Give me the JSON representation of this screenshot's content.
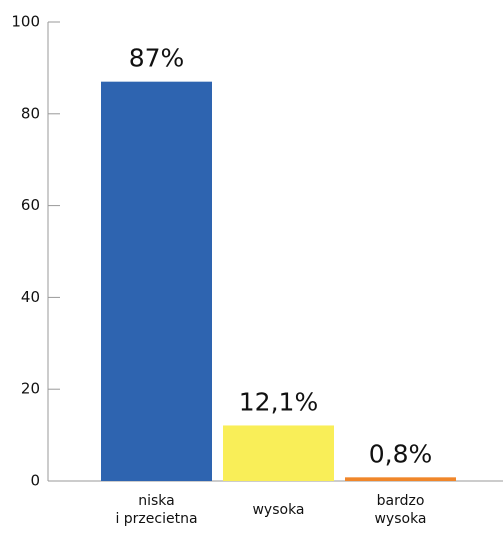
{
  "chart_data": {
    "type": "bar",
    "categories": [
      "niska\ni przecietna",
      "wysoka",
      "bardzo\nwysoka"
    ],
    "values": [
      87,
      12.1,
      0.8
    ],
    "value_labels": [
      "87%",
      "12,1%",
      "0,8%"
    ],
    "colors": [
      "#2e64b0",
      "#f9ee58",
      "#f0862a"
    ],
    "ylim": [
      0,
      100
    ],
    "yticks": [
      0,
      20,
      40,
      60,
      80,
      100
    ],
    "grid": false
  }
}
